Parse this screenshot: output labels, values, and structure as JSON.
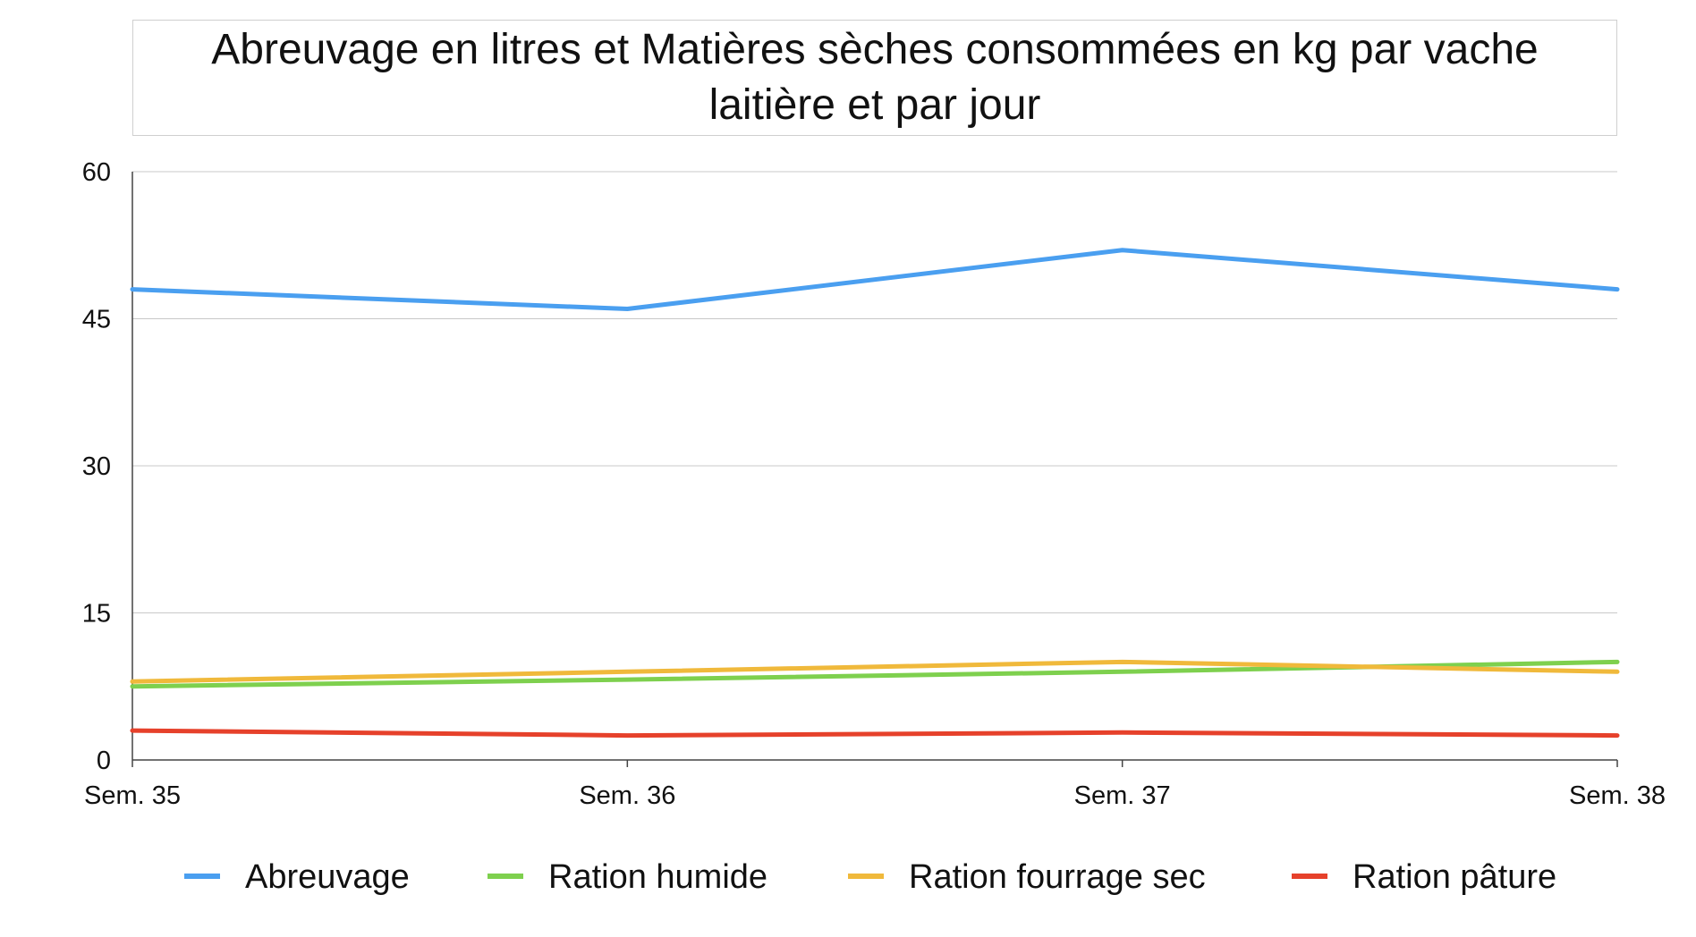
{
  "chart_data": {
    "type": "line",
    "title": "Abreuvage en litres et Matières sèches consommées en kg par vache laitière et par jour",
    "categories": [
      "Sem. 35",
      "Sem. 36",
      "Sem. 37",
      "Sem. 38"
    ],
    "ylim": [
      0,
      60
    ],
    "yticks": [
      0,
      15,
      30,
      45,
      60
    ],
    "grid": true,
    "legend_position": "bottom",
    "series": [
      {
        "name": "Abreuvage",
        "color": "#4a9ff0",
        "values": [
          48,
          46,
          52,
          48
        ]
      },
      {
        "name": "Ration humide",
        "color": "#7ed04e",
        "values": [
          7.5,
          8.2,
          9,
          10
        ]
      },
      {
        "name": "Ration fourrage sec",
        "color": "#f0b93b",
        "values": [
          8,
          9,
          10,
          9
        ]
      },
      {
        "name": "Ration pâture",
        "color": "#e6412b",
        "values": [
          3,
          2.5,
          2.8,
          2.5
        ]
      }
    ]
  }
}
